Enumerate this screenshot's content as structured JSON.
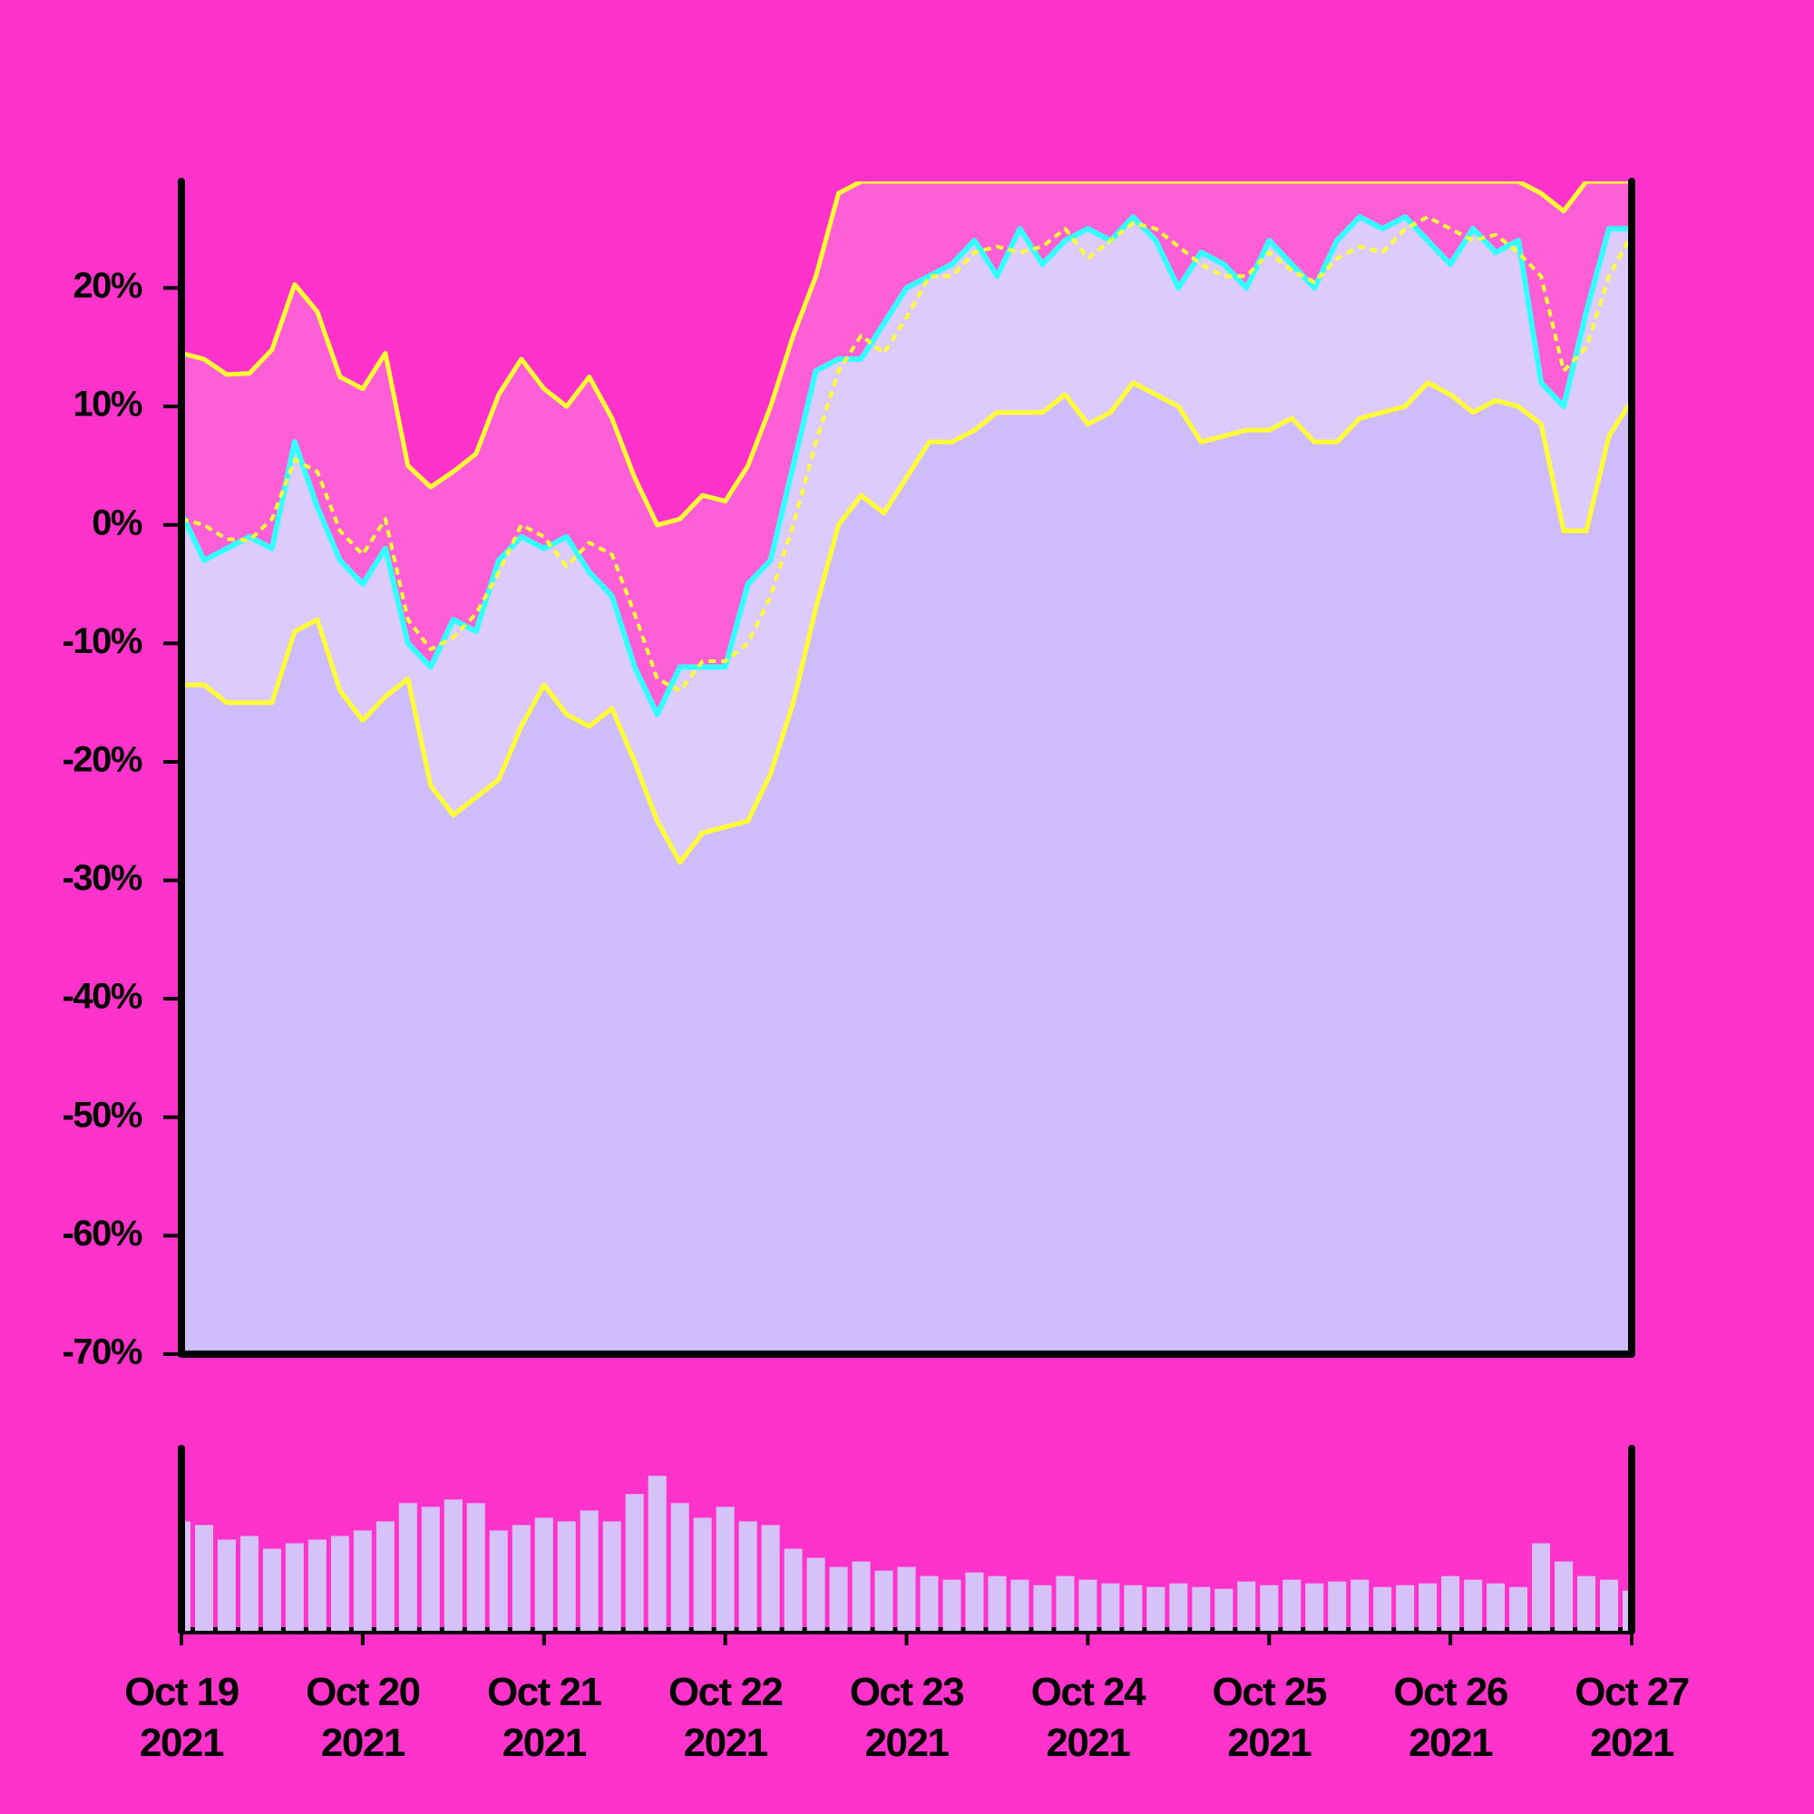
{
  "chart_data": {
    "type": "bollinger",
    "background": "#ff33cc",
    "xlim": [
      0,
      8
    ],
    "xticks": [
      {
        "value": 0,
        "label": "Oct 19\n2021"
      },
      {
        "value": 1,
        "label": "Oct 20\n2021"
      },
      {
        "value": 2,
        "label": "Oct 21\n2021"
      },
      {
        "value": 3,
        "label": "Oct 22\n2021"
      },
      {
        "value": 4,
        "label": "Oct 23\n2021"
      },
      {
        "value": 5,
        "label": "Oct 24\n2021"
      },
      {
        "value": 6,
        "label": "Oct 25\n2021"
      },
      {
        "value": 7,
        "label": "Oct 26\n2021"
      },
      {
        "value": 8,
        "label": "Oct 27\n2021"
      }
    ],
    "ylim": [
      -70,
      29
    ],
    "yticks": [
      {
        "value": -70,
        "label": "-70%"
      },
      {
        "value": -60,
        "label": "-60%"
      },
      {
        "value": -50,
        "label": "-50%"
      },
      {
        "value": -40,
        "label": "-40%"
      },
      {
        "value": -30,
        "label": "-30%"
      },
      {
        "value": -20,
        "label": "-20%"
      },
      {
        "value": -10,
        "label": "-10%"
      },
      {
        "value": 0,
        "label": "0%"
      },
      {
        "value": 10,
        "label": "10%"
      },
      {
        "value": 20,
        "label": "20%"
      }
    ],
    "x": [
      0,
      0.125,
      0.25,
      0.375,
      0.5,
      0.625,
      0.75,
      0.875,
      1,
      1.125,
      1.25,
      1.375,
      1.5,
      1.625,
      1.75,
      1.875,
      2,
      2.125,
      2.25,
      2.375,
      2.5,
      2.625,
      2.75,
      2.875,
      3,
      3.125,
      3.25,
      3.375,
      3.5,
      3.625,
      3.75,
      3.875,
      4,
      4.125,
      4.25,
      4.375,
      4.5,
      4.625,
      4.75,
      4.875,
      5,
      5.125,
      5.25,
      5.375,
      5.5,
      5.625,
      5.75,
      5.875,
      6,
      6.125,
      6.25,
      6.375,
      6.5,
      6.625,
      6.75,
      6.875,
      7,
      7.125,
      7.25,
      7.375,
      7.5,
      7.625,
      7.75,
      7.875,
      8
    ],
    "upper_band": {
      "color": "#ffff33",
      "fill": "#ff5fd6",
      "values": [
        14.5,
        14,
        12.7,
        12.8,
        14.8,
        20.3,
        18,
        12.5,
        11.5,
        14.5,
        5,
        3.2,
        4.5,
        6,
        11,
        14,
        11.5,
        10,
        12.5,
        9,
        4,
        0,
        0.5,
        2.5,
        2,
        5,
        10,
        16,
        21,
        28,
        29,
        29,
        29,
        29,
        29,
        29,
        29,
        29,
        29,
        29,
        29,
        29,
        29,
        29,
        29,
        29,
        29,
        29,
        29,
        29,
        29,
        29,
        29,
        29,
        29,
        29,
        29,
        29,
        29,
        29,
        28,
        26.5,
        29,
        29,
        29
      ]
    },
    "middle_band": {
      "color": "#ffff33",
      "values": [
        0.5,
        0,
        -1.2,
        -1.3,
        0.5,
        5.5,
        4.5,
        -0.5,
        -2.5,
        0.5,
        -8,
        -10.5,
        -9.5,
        -7.5,
        -4,
        0,
        -1,
        -3.5,
        -1.5,
        -2.5,
        -7.5,
        -13,
        -14,
        -11.5,
        -11.5,
        -10,
        -6,
        0,
        7,
        13,
        16,
        14.5,
        17.5,
        21,
        21,
        23,
        23.5,
        23,
        23.5,
        25,
        22.5,
        24,
        25.5,
        25,
        23.5,
        22,
        21,
        21,
        23,
        21.5,
        20.5,
        22.5,
        23.5,
        23,
        25,
        26,
        25,
        24,
        24.5,
        23,
        21,
        13,
        15,
        21,
        24.5
      ]
    },
    "lower_band": {
      "color": "#ffff33",
      "fill": "#cfbcfb",
      "values": [
        -13.5,
        -13.5,
        -15,
        -15,
        -15,
        -9,
        -8,
        -14,
        -16.5,
        -14.5,
        -13,
        -22,
        -24.5,
        -23,
        -21.5,
        -17,
        -13.5,
        -16,
        -17,
        -15.5,
        -20,
        -25,
        -28.5,
        -26,
        -25.5,
        -25,
        -21,
        -15,
        -7,
        0,
        2.5,
        1,
        4,
        7,
        7,
        8,
        9.5,
        9.5,
        9.5,
        11,
        8.5,
        9.5,
        12,
        11,
        10,
        7,
        7.5,
        8,
        8,
        9,
        7,
        7,
        9,
        9.5,
        10,
        12,
        11,
        9.5,
        10.5,
        10,
        8.5,
        -0.5,
        -0.5,
        7.5,
        10.5
      ]
    },
    "price": {
      "color": "#33ffff",
      "fill": "#dccbfb",
      "values": [
        1,
        -3,
        -2,
        -1,
        -2,
        7,
        1.5,
        -3,
        -5,
        -2,
        -10,
        -12,
        -8,
        -9,
        -3,
        -1,
        -2,
        -1,
        -4,
        -6,
        -12,
        -16,
        -12,
        -12,
        -12,
        -5,
        -3,
        5,
        13,
        14,
        14,
        17,
        20,
        21,
        22,
        24,
        21,
        25,
        22,
        24,
        25,
        24,
        26,
        24,
        20,
        23,
        22,
        20,
        24,
        22,
        20,
        24,
        26,
        25,
        26,
        24,
        22,
        25,
        23,
        24,
        12,
        10,
        18,
        25,
        25
      ]
    },
    "volume": {
      "color": "#d4c2f8",
      "ylim": [
        0,
        100
      ],
      "values": [
        60,
        58,
        50,
        52,
        45,
        48,
        50,
        52,
        55,
        60,
        70,
        68,
        72,
        70,
        55,
        58,
        62,
        60,
        66,
        60,
        75,
        85,
        70,
        62,
        68,
        60,
        58,
        45,
        40,
        35,
        38,
        33,
        35,
        30,
        28,
        32,
        30,
        28,
        25,
        30,
        28,
        26,
        25,
        24,
        26,
        24,
        23,
        27,
        25,
        28,
        26,
        27,
        28,
        24,
        25,
        26,
        30,
        28,
        26,
        24,
        48,
        38,
        30,
        28,
        22
      ]
    }
  }
}
